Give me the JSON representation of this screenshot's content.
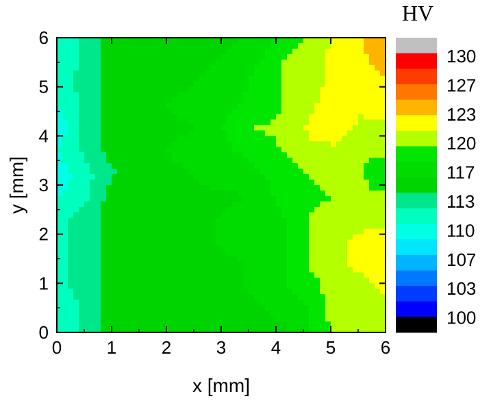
{
  "chart_data": {
    "type": "heatmap",
    "title": "",
    "xlabel": "x [mm]",
    "ylabel": "y [mm]",
    "xlim": [
      0,
      6
    ],
    "ylim": [
      0,
      6
    ],
    "x_ticks": [
      "0",
      "1",
      "2",
      "3",
      "4",
      "5",
      "6"
    ],
    "y_ticks": [
      "0",
      "1",
      "2",
      "3",
      "4",
      "5",
      "6"
    ],
    "grid": false,
    "colorbar": {
      "title": "HV",
      "labels": [
        "130",
        "127",
        "123",
        "120",
        "117",
        "113",
        "110",
        "107",
        "103",
        "100"
      ],
      "range": [
        100,
        133
      ],
      "level_colors_top_to_bottom": [
        "#c0c0c0",
        "#ff0000",
        "#ff3c00",
        "#ff7800",
        "#ffb400",
        "#ffff00",
        "#b4ff00",
        "#00e600",
        "#00dc00",
        "#00d400",
        "#00e68a",
        "#00ffbe",
        "#00ffe6",
        "#00e6ff",
        "#00b4ff",
        "#0078ff",
        "#003cff",
        "#0000ff",
        "#000000"
      ]
    },
    "hardness_grid_y_top_to_bottom": [
      [
        113,
        114,
        116,
        117,
        116,
        116,
        117,
        117,
        118,
        120,
        121,
        123,
        124,
        126
      ],
      [
        112,
        114,
        116,
        117,
        117,
        116,
        117,
        118,
        119,
        121,
        122,
        123,
        124,
        125
      ],
      [
        112,
        115,
        116,
        117,
        117,
        117,
        118,
        118,
        120,
        121,
        122,
        123,
        124,
        124
      ],
      [
        112,
        114,
        116,
        117,
        117,
        118,
        118,
        119,
        120,
        121,
        122,
        124,
        123,
        124
      ],
      [
        111,
        114,
        116,
        117,
        117,
        117,
        118,
        120,
        121,
        121,
        123,
        124,
        122,
        122
      ],
      [
        112,
        114,
        116,
        117,
        117,
        118,
        118,
        119,
        120,
        121,
        122,
        122,
        121,
        121
      ],
      [
        111,
        113,
        115,
        117,
        117,
        117,
        118,
        118,
        119,
        120,
        121,
        122,
        121,
        120
      ],
      [
        112,
        113,
        116,
        117,
        117,
        117,
        117,
        117,
        118,
        120,
        120,
        121,
        121,
        121
      ],
      [
        113,
        115,
        116,
        117,
        117,
        117,
        117,
        118,
        118,
        119,
        121,
        122,
        122,
        122
      ],
      [
        113,
        115,
        116,
        117,
        117,
        117,
        117,
        118,
        118,
        119,
        121,
        122,
        123,
        124
      ],
      [
        113,
        115,
        116,
        116,
        117,
        117,
        117,
        117,
        118,
        119,
        121,
        122,
        123,
        124
      ],
      [
        113,
        115,
        116,
        116,
        117,
        117,
        117,
        117,
        118,
        119,
        120,
        122,
        122,
        123
      ],
      [
        112,
        114,
        116,
        116,
        117,
        117,
        116,
        116,
        117,
        118,
        119,
        122,
        122,
        122
      ],
      [
        113,
        114,
        116,
        117,
        117,
        116,
        116,
        116,
        117,
        117,
        119,
        121,
        122,
        122
      ]
    ]
  }
}
